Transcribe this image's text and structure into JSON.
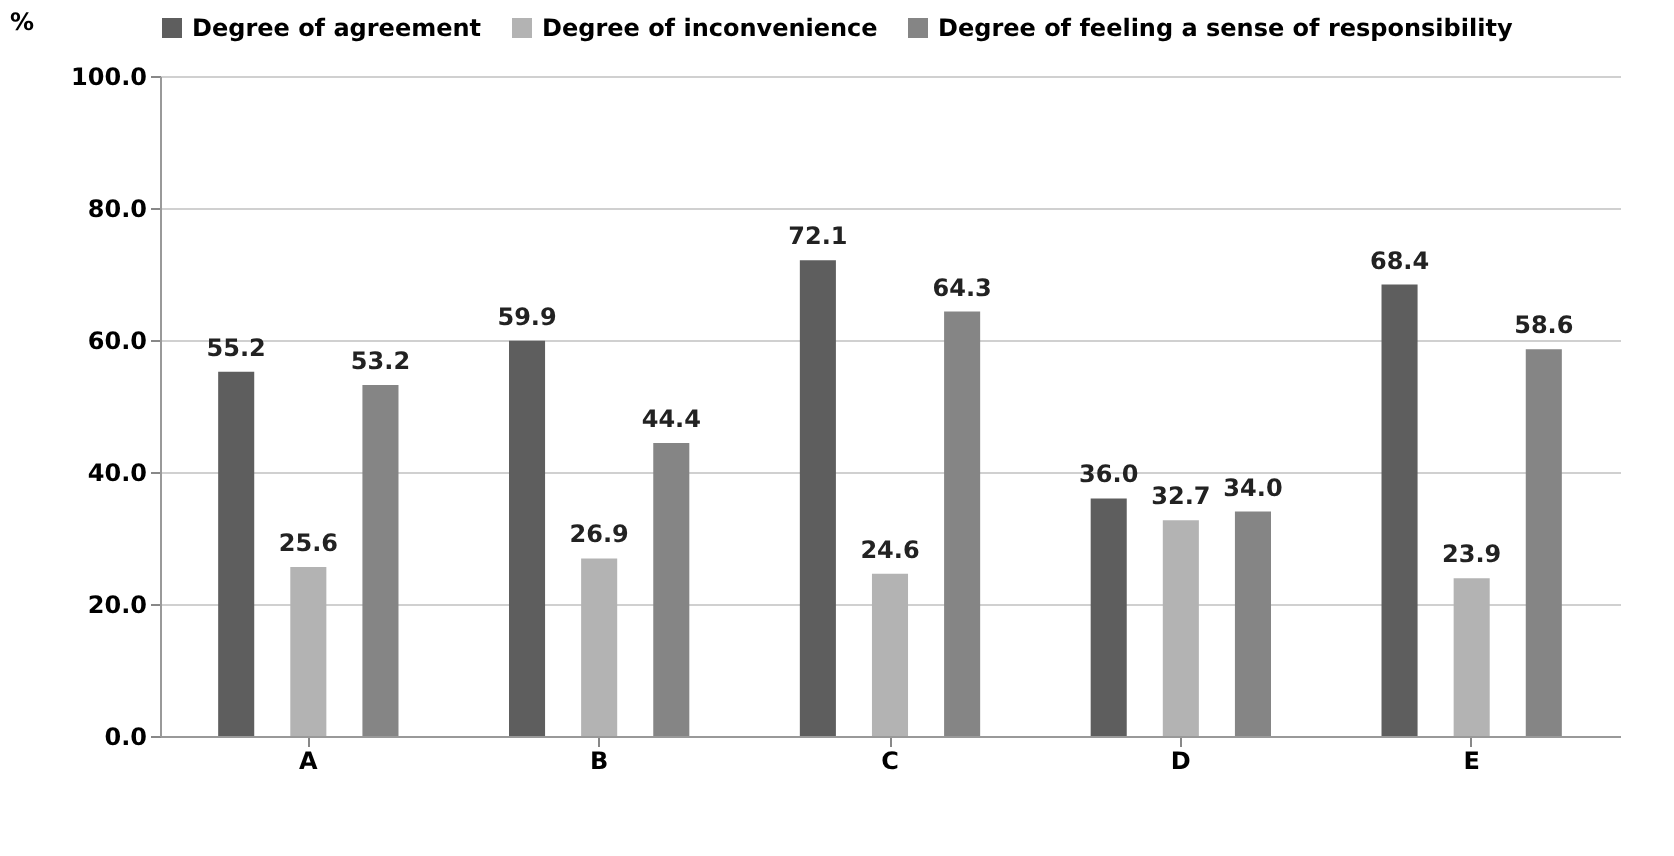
{
  "chart_data": {
    "type": "bar",
    "ylabel": "%",
    "categories": [
      "A",
      "B",
      "C",
      "D",
      "E"
    ],
    "series": [
      {
        "name": "Degree of agreement",
        "color": "#5e5e5e",
        "values": [
          55.2,
          59.9,
          72.1,
          36.0,
          68.4
        ],
        "value_labels": [
          "55.2",
          "59.9",
          "72.1",
          "36.0",
          "68.4"
        ]
      },
      {
        "name": "Degree of inconvenience",
        "color": "#b3b3b3",
        "values": [
          25.6,
          26.9,
          24.6,
          32.7,
          23.9
        ],
        "value_labels": [
          "25.6",
          "26.9",
          "24.6",
          "32.7",
          "23.9"
        ]
      },
      {
        "name": "Degree of feeling a sense of responsibility",
        "color": "#858585",
        "values": [
          53.2,
          44.4,
          64.3,
          34.0,
          58.6
        ],
        "value_labels": [
          "53.2",
          "44.4",
          "64.3",
          "34.0",
          "58.6"
        ]
      }
    ],
    "ylim": [
      0,
      100
    ],
    "yticks": [
      {
        "value": 0,
        "label": "0.0"
      },
      {
        "value": 20,
        "label": "20.0"
      },
      {
        "value": 40,
        "label": "40.0"
      },
      {
        "value": 60,
        "label": "60.0"
      },
      {
        "value": 80,
        "label": "80.0"
      },
      {
        "value": 100,
        "label": "100.0"
      }
    ],
    "grid": "y",
    "legend": "top"
  }
}
